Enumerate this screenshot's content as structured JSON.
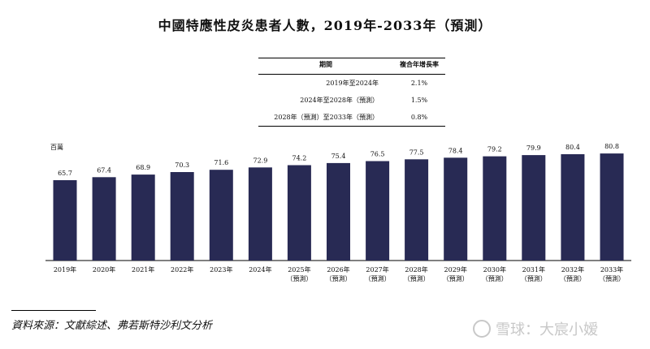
{
  "title": "中國特應性皮炎患者人數，2019年-2033年（預測）",
  "table": {
    "headers": [
      "期間",
      "複合年增長率"
    ],
    "rows": [
      [
        "2019年至2024年",
        "2.1%"
      ],
      [
        "2024年至2028年（預測）",
        "1.5%"
      ],
      [
        "2028年（預測）至2033年（預測）",
        "0.8%"
      ]
    ]
  },
  "unit": "百萬",
  "source": "資料來源：文獻綜述、弗若斯特沙利文分析",
  "watermark": "雪球：大宸小嫒",
  "colors": {
    "bar": "#282a54"
  },
  "chart_data": {
    "type": "bar",
    "title": "中國特應性皮炎患者人數，2019年-2033年（預測）",
    "ylabel": "百萬",
    "categories": [
      "2019年",
      "2020年",
      "2021年",
      "2022年",
      "2023年",
      "2024年",
      "2025年",
      "2026年",
      "2027年",
      "2028年",
      "2029年",
      "2030年",
      "2031年",
      "2032年",
      "2033年"
    ],
    "category_notes": [
      "",
      "",
      "",
      "",
      "",
      "",
      "（預測）",
      "（預測）",
      "（預測）",
      "（預測）",
      "（預測）",
      "（預測）",
      "（預測）",
      "（預測）",
      "（預測）"
    ],
    "values": [
      65.7,
      67.4,
      68.9,
      70.3,
      71.6,
      72.9,
      74.2,
      75.4,
      76.5,
      77.5,
      78.4,
      79.2,
      79.9,
      80.4,
      80.8
    ],
    "data_labels": [
      "65.7",
      "67.4",
      "68.9",
      "70.3",
      "71.6",
      "72.9",
      "74.2",
      "75.4",
      "76.5",
      "77.5",
      "78.4",
      "79.2",
      "79.9",
      "80.4",
      "80.8"
    ],
    "grid": false
  }
}
